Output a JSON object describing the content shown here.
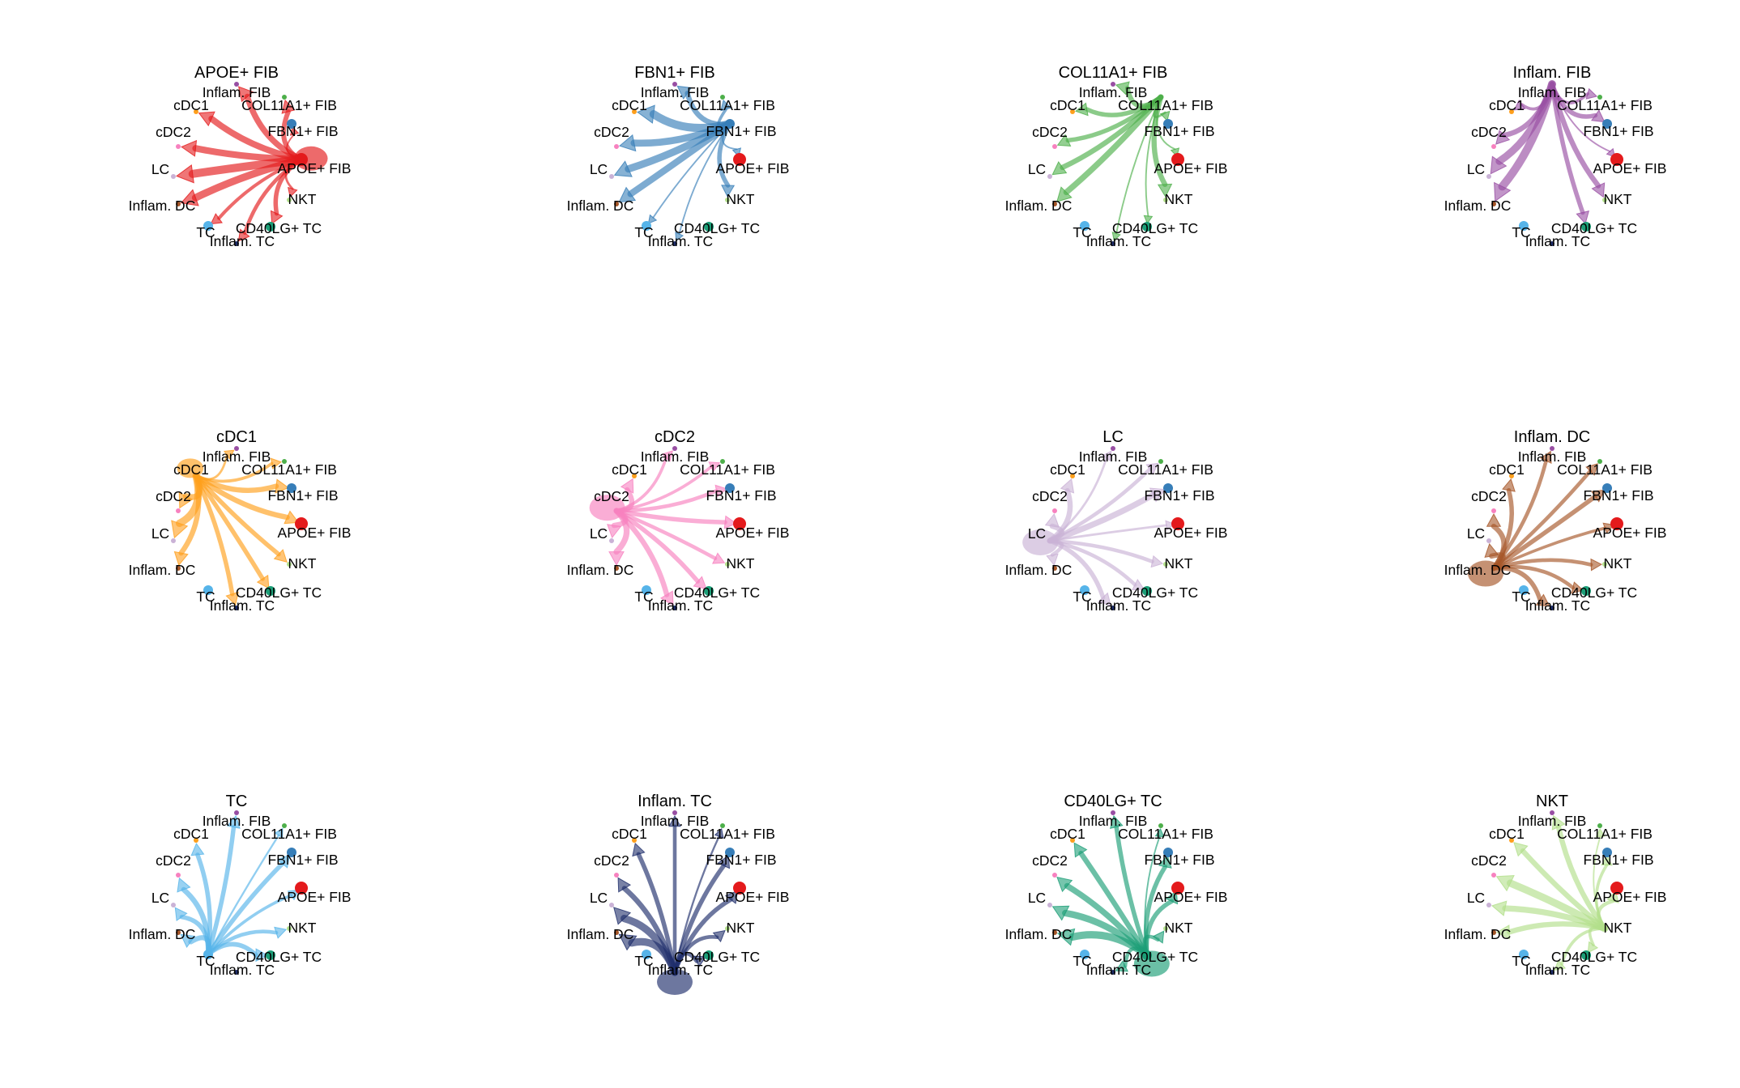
{
  "figure": {
    "rows": 3,
    "cols": 4,
    "nodes": [
      {
        "id": "inflam-fib",
        "label": "Inflam. FIB",
        "color": "#984EA3",
        "size": 1
      },
      {
        "id": "col11a1-fib",
        "label": "COL11A1+ FIB",
        "color": "#4DAF4A",
        "size": 1
      },
      {
        "id": "fbn1-fib",
        "label": "FBN1+ FIB",
        "color": "#377EB8",
        "size": 2
      },
      {
        "id": "apoe-fib",
        "label": "APOE+ FIB",
        "color": "#E41A1C",
        "size": 3
      },
      {
        "id": "nkt",
        "label": "NKT",
        "color": "#B2DF8A",
        "size": 1
      },
      {
        "id": "cd40lg-tc",
        "label": "CD40LG+ TC",
        "color": "#1B9E77",
        "size": 2
      },
      {
        "id": "inflam-tc",
        "label": "Inflam. TC",
        "color": "#1F2E6B",
        "size": 1
      },
      {
        "id": "tc",
        "label": "TC",
        "color": "#56B4E9",
        "size": 2
      },
      {
        "id": "inflam-dc",
        "label": "Inflam. DC",
        "color": "#A65628",
        "size": 1
      },
      {
        "id": "lc",
        "label": "LC",
        "color": "#CAB2D6",
        "size": 1
      },
      {
        "id": "cdc2",
        "label": "cDC2",
        "color": "#F781BF",
        "size": 1
      },
      {
        "id": "cdc1",
        "label": "cDC1",
        "color": "#FF9F1C",
        "size": 1
      }
    ],
    "panels": [
      {
        "title": "APOE+ FIB",
        "source": "apoe-fib",
        "color": "#E41A1C",
        "edges": [
          [
            "inflam-fib",
            0.7
          ],
          [
            "col11a1-fib",
            0.55
          ],
          [
            "fbn1-fib",
            0.1
          ],
          [
            "apoe-fib",
            0.9
          ],
          [
            "nkt",
            0.2
          ],
          [
            "cd40lg-tc",
            0.5
          ],
          [
            "inflam-tc",
            0.4
          ],
          [
            "tc",
            0.35
          ],
          [
            "inflam-dc",
            0.9
          ],
          [
            "lc",
            1.0
          ],
          [
            "cdc2",
            0.8
          ],
          [
            "cdc1",
            0.75
          ]
        ]
      },
      {
        "title": "FBN1+ FIB",
        "source": "fbn1-fib",
        "color": "#377EB8",
        "edges": [
          [
            "inflam-fib",
            0.6
          ],
          [
            "col11a1-fib",
            0.3
          ],
          [
            "apoe-fib",
            0.1
          ],
          [
            "nkt",
            0.5
          ],
          [
            "inflam-tc",
            0.1
          ],
          [
            "tc",
            0.1
          ],
          [
            "inflam-dc",
            0.8
          ],
          [
            "lc",
            0.9
          ],
          [
            "cdc2",
            0.85
          ],
          [
            "cdc1",
            1.0
          ]
        ]
      },
      {
        "title": "COL11A1+ FIB",
        "source": "col11a1-fib",
        "color": "#4DAF4A",
        "edges": [
          [
            "inflam-fib",
            0.55
          ],
          [
            "fbn1-fib",
            0.2
          ],
          [
            "apoe-fib",
            0.1
          ],
          [
            "nkt",
            0.6
          ],
          [
            "cd40lg-tc",
            0.1
          ],
          [
            "inflam-tc",
            0.1
          ],
          [
            "inflam-dc",
            0.7
          ],
          [
            "lc",
            0.6
          ],
          [
            "cdc2",
            0.5
          ],
          [
            "cdc1",
            0.5
          ]
        ]
      },
      {
        "title": "Inflam. FIB",
        "source": "inflam-fib",
        "color": "#984EA3",
        "edges": [
          [
            "col11a1-fib",
            0.3
          ],
          [
            "fbn1-fib",
            0.5
          ],
          [
            "apoe-fib",
            0.1
          ],
          [
            "nkt",
            0.6
          ],
          [
            "cd40lg-tc",
            0.5
          ],
          [
            "inflam-dc",
            1.0
          ],
          [
            "lc",
            0.9
          ],
          [
            "cdc2",
            0.6
          ],
          [
            "cdc1",
            0.3
          ]
        ]
      },
      {
        "title": "cDC1",
        "source": "cdc1",
        "color": "#FF9F1C",
        "edges": [
          [
            "cdc1",
            0.6
          ],
          [
            "inflam-fib",
            0.2
          ],
          [
            "col11a1-fib",
            0.3
          ],
          [
            "fbn1-fib",
            0.6
          ],
          [
            "apoe-fib",
            0.6
          ],
          [
            "nkt",
            0.5
          ],
          [
            "cd40lg-tc",
            0.5
          ],
          [
            "inflam-tc",
            0.5
          ],
          [
            "inflam-dc",
            0.6
          ],
          [
            "lc",
            0.9
          ],
          [
            "cdc2",
            0.7
          ]
        ]
      },
      {
        "title": "cDC2",
        "source": "cdc2",
        "color": "#F781BF",
        "edges": [
          [
            "cdc2",
            1.0
          ],
          [
            "inflam-fib",
            0.3
          ],
          [
            "col11a1-fib",
            0.3
          ],
          [
            "fbn1-fib",
            0.4
          ],
          [
            "apoe-fib",
            0.5
          ],
          [
            "nkt",
            0.4
          ],
          [
            "cd40lg-tc",
            0.5
          ],
          [
            "inflam-tc",
            0.6
          ],
          [
            "inflam-dc",
            0.7
          ],
          [
            "lc",
            0.6
          ],
          [
            "cdc1",
            0.6
          ]
        ]
      },
      {
        "title": "LC",
        "source": "lc",
        "color": "#CAB2D6",
        "edges": [
          [
            "lc",
            1.0
          ],
          [
            "inflam-fib",
            0.2
          ],
          [
            "col11a1-fib",
            0.4
          ],
          [
            "fbn1-fib",
            0.7
          ],
          [
            "apoe-fib",
            0.2
          ],
          [
            "nkt",
            0.4
          ],
          [
            "cd40lg-tc",
            0.4
          ],
          [
            "inflam-tc",
            0.5
          ],
          [
            "inflam-dc",
            0.4
          ],
          [
            "cdc2",
            0.6
          ],
          [
            "cdc1",
            0.6
          ]
        ]
      },
      {
        "title": "Inflam. DC",
        "source": "inflam-dc",
        "color": "#A65628",
        "edges": [
          [
            "inflam-dc",
            1.0
          ],
          [
            "inflam-fib",
            0.4
          ],
          [
            "col11a1-fib",
            0.4
          ],
          [
            "fbn1-fib",
            0.5
          ],
          [
            "apoe-fib",
            0.3
          ],
          [
            "nkt",
            0.4
          ],
          [
            "cd40lg-tc",
            0.4
          ],
          [
            "inflam-tc",
            0.5
          ],
          [
            "lc",
            0.6
          ],
          [
            "cdc2",
            0.6
          ],
          [
            "cdc1",
            0.5
          ]
        ]
      },
      {
        "title": "TC",
        "source": "tc",
        "color": "#56B4E9",
        "edges": [
          [
            "inflam-fib",
            0.5
          ],
          [
            "col11a1-fib",
            0.15
          ],
          [
            "fbn1-fib",
            0.5
          ],
          [
            "apoe-fib",
            0.3
          ],
          [
            "nkt",
            0.4
          ],
          [
            "cd40lg-tc",
            0.5
          ],
          [
            "inflam-dc",
            0.6
          ],
          [
            "lc",
            0.5
          ],
          [
            "cdc2",
            0.6
          ],
          [
            "cdc1",
            0.5
          ]
        ]
      },
      {
        "title": "Inflam. TC",
        "source": "inflam-tc",
        "color": "#1F2E6B",
        "edges": [
          [
            "inflam-tc",
            1.0
          ],
          [
            "inflam-fib",
            0.4
          ],
          [
            "col11a1-fib",
            0.15
          ],
          [
            "fbn1-fib",
            0.5
          ],
          [
            "apoe-fib",
            0.5
          ],
          [
            "nkt",
            0.4
          ],
          [
            "cd40lg-tc",
            0.4
          ],
          [
            "inflam-dc",
            0.9
          ],
          [
            "lc",
            0.9
          ],
          [
            "cdc2",
            0.6
          ],
          [
            "cdc1",
            0.5
          ]
        ]
      },
      {
        "title": "CD40LG+ TC",
        "source": "cd40lg-tc",
        "color": "#1B9E77",
        "edges": [
          [
            "cd40lg-tc",
            1.0
          ],
          [
            "inflam-fib",
            0.5
          ],
          [
            "col11a1-fib",
            0.1
          ],
          [
            "fbn1-fib",
            0.5
          ],
          [
            "apoe-fib",
            0.5
          ],
          [
            "nkt",
            0.4
          ],
          [
            "inflam-tc",
            0.4
          ],
          [
            "inflam-dc",
            0.9
          ],
          [
            "lc",
            0.8
          ],
          [
            "cdc2",
            0.7
          ],
          [
            "cdc1",
            0.6
          ]
        ]
      },
      {
        "title": "NKT",
        "source": "nkt",
        "color": "#B2DF8A",
        "edges": [
          [
            "inflam-fib",
            0.6
          ],
          [
            "col11a1-fib",
            0.1
          ],
          [
            "fbn1-fib",
            0.3
          ],
          [
            "apoe-fib",
            0.4
          ],
          [
            "cd40lg-tc",
            0.3
          ],
          [
            "inflam-tc",
            0.3
          ],
          [
            "inflam-dc",
            0.6
          ],
          [
            "lc",
            0.7
          ],
          [
            "cdc2",
            0.9
          ],
          [
            "cdc1",
            0.6
          ]
        ]
      }
    ]
  }
}
